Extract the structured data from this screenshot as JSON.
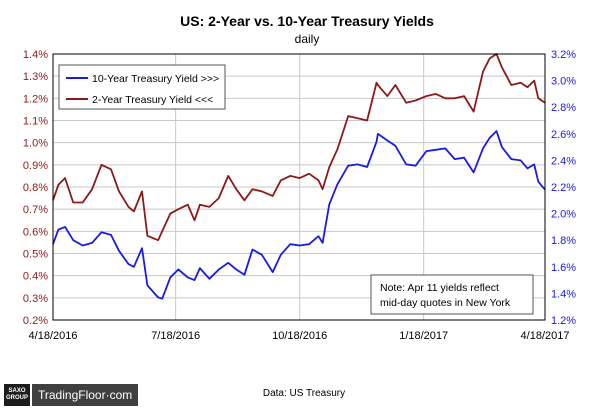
{
  "chart_data": {
    "type": "line",
    "title": "US: 2-Year vs. 10-Year Treasury Yields",
    "subtitle": "daily",
    "x_ticks": [
      "4/18/2016",
      "7/18/2016",
      "10/18/2016",
      "1/18/2017",
      "4/18/2017"
    ],
    "x_range": [
      "2016-04-18",
      "2017-04-18"
    ],
    "y_left": {
      "ticks": [
        "0.2%",
        "0.3%",
        "0.4%",
        "0.5%",
        "0.6%",
        "0.7%",
        "0.8%",
        "0.9%",
        "1.0%",
        "1.1%",
        "1.2%",
        "1.3%",
        "1.4%"
      ],
      "ylim": [
        0.2,
        1.4
      ],
      "color": "#8b1a1a"
    },
    "y_right": {
      "ticks": [
        "1.2%",
        "1.4%",
        "1.6%",
        "1.8%",
        "2.0%",
        "2.2%",
        "2.4%",
        "2.6%",
        "2.8%",
        "3.0%",
        "3.2%"
      ],
      "ylim": [
        1.2,
        3.2
      ],
      "color": "#1a1ae6"
    },
    "legend_placement": "top-left",
    "grid": true,
    "annotation": [
      "Note: Apr 11 yields reflect",
      "mid-day quotes in New York"
    ],
    "series": [
      {
        "name": "10-Year Treasury Yield >>>",
        "axis": "right",
        "color": "#1a1ae6",
        "points": [
          [
            "2016-04-18",
            1.77
          ],
          [
            "2016-04-22",
            1.88
          ],
          [
            "2016-04-27",
            1.9
          ],
          [
            "2016-05-03",
            1.8
          ],
          [
            "2016-05-10",
            1.76
          ],
          [
            "2016-05-17",
            1.78
          ],
          [
            "2016-05-24",
            1.86
          ],
          [
            "2016-05-31",
            1.84
          ],
          [
            "2016-06-06",
            1.72
          ],
          [
            "2016-06-13",
            1.62
          ],
          [
            "2016-06-17",
            1.6
          ],
          [
            "2016-06-23",
            1.74
          ],
          [
            "2016-06-27",
            1.46
          ],
          [
            "2016-07-05",
            1.37
          ],
          [
            "2016-07-08",
            1.36
          ],
          [
            "2016-07-14",
            1.52
          ],
          [
            "2016-07-20",
            1.58
          ],
          [
            "2016-07-27",
            1.52
          ],
          [
            "2016-08-01",
            1.5
          ],
          [
            "2016-08-05",
            1.59
          ],
          [
            "2016-08-12",
            1.51
          ],
          [
            "2016-08-19",
            1.58
          ],
          [
            "2016-08-26",
            1.63
          ],
          [
            "2016-09-01",
            1.58
          ],
          [
            "2016-09-07",
            1.54
          ],
          [
            "2016-09-13",
            1.73
          ],
          [
            "2016-09-20",
            1.69
          ],
          [
            "2016-09-28",
            1.56
          ],
          [
            "2016-10-04",
            1.69
          ],
          [
            "2016-10-11",
            1.77
          ],
          [
            "2016-10-18",
            1.76
          ],
          [
            "2016-10-25",
            1.77
          ],
          [
            "2016-11-01",
            1.83
          ],
          [
            "2016-11-04",
            1.78
          ],
          [
            "2016-11-09",
            2.07
          ],
          [
            "2016-11-15",
            2.22
          ],
          [
            "2016-11-23",
            2.36
          ],
          [
            "2016-11-30",
            2.37
          ],
          [
            "2016-12-07",
            2.35
          ],
          [
            "2016-12-14",
            2.54
          ],
          [
            "2016-12-15",
            2.6
          ],
          [
            "2016-12-22",
            2.55
          ],
          [
            "2016-12-28",
            2.51
          ],
          [
            "2017-01-05",
            2.37
          ],
          [
            "2017-01-12",
            2.36
          ],
          [
            "2017-01-20",
            2.47
          ],
          [
            "2017-01-27",
            2.48
          ],
          [
            "2017-02-03",
            2.49
          ],
          [
            "2017-02-10",
            2.41
          ],
          [
            "2017-02-17",
            2.42
          ],
          [
            "2017-02-24",
            2.31
          ],
          [
            "2017-03-03",
            2.49
          ],
          [
            "2017-03-08",
            2.57
          ],
          [
            "2017-03-13",
            2.62
          ],
          [
            "2017-03-17",
            2.5
          ],
          [
            "2017-03-24",
            2.41
          ],
          [
            "2017-03-31",
            2.4
          ],
          [
            "2017-04-05",
            2.34
          ],
          [
            "2017-04-10",
            2.37
          ],
          [
            "2017-04-13",
            2.24
          ],
          [
            "2017-04-18",
            2.18
          ]
        ]
      },
      {
        "name": "2-Year Treasury Yield <<<",
        "axis": "left",
        "color": "#8b1a1a",
        "points": [
          [
            "2016-04-18",
            0.74
          ],
          [
            "2016-04-22",
            0.81
          ],
          [
            "2016-04-27",
            0.84
          ],
          [
            "2016-05-03",
            0.73
          ],
          [
            "2016-05-10",
            0.73
          ],
          [
            "2016-05-17",
            0.79
          ],
          [
            "2016-05-24",
            0.9
          ],
          [
            "2016-05-31",
            0.88
          ],
          [
            "2016-06-06",
            0.78
          ],
          [
            "2016-06-13",
            0.71
          ],
          [
            "2016-06-17",
            0.69
          ],
          [
            "2016-06-23",
            0.78
          ],
          [
            "2016-06-27",
            0.58
          ],
          [
            "2016-07-05",
            0.56
          ],
          [
            "2016-07-08",
            0.6
          ],
          [
            "2016-07-14",
            0.68
          ],
          [
            "2016-07-20",
            0.7
          ],
          [
            "2016-07-27",
            0.72
          ],
          [
            "2016-08-01",
            0.65
          ],
          [
            "2016-08-05",
            0.72
          ],
          [
            "2016-08-12",
            0.71
          ],
          [
            "2016-08-19",
            0.75
          ],
          [
            "2016-08-26",
            0.85
          ],
          [
            "2016-09-01",
            0.79
          ],
          [
            "2016-09-07",
            0.74
          ],
          [
            "2016-09-13",
            0.79
          ],
          [
            "2016-09-20",
            0.78
          ],
          [
            "2016-09-28",
            0.76
          ],
          [
            "2016-10-04",
            0.83
          ],
          [
            "2016-10-11",
            0.85
          ],
          [
            "2016-10-18",
            0.84
          ],
          [
            "2016-10-25",
            0.86
          ],
          [
            "2016-11-01",
            0.83
          ],
          [
            "2016-11-04",
            0.79
          ],
          [
            "2016-11-09",
            0.89
          ],
          [
            "2016-11-15",
            0.97
          ],
          [
            "2016-11-23",
            1.12
          ],
          [
            "2016-11-30",
            1.11
          ],
          [
            "2016-12-07",
            1.1
          ],
          [
            "2016-12-14",
            1.27
          ],
          [
            "2016-12-15",
            1.26
          ],
          [
            "2016-12-22",
            1.21
          ],
          [
            "2016-12-28",
            1.26
          ],
          [
            "2017-01-05",
            1.18
          ],
          [
            "2017-01-12",
            1.19
          ],
          [
            "2017-01-20",
            1.21
          ],
          [
            "2017-01-27",
            1.22
          ],
          [
            "2017-02-03",
            1.2
          ],
          [
            "2017-02-10",
            1.2
          ],
          [
            "2017-02-17",
            1.21
          ],
          [
            "2017-02-24",
            1.14
          ],
          [
            "2017-03-03",
            1.32
          ],
          [
            "2017-03-08",
            1.38
          ],
          [
            "2017-03-13",
            1.4
          ],
          [
            "2017-03-17",
            1.34
          ],
          [
            "2017-03-24",
            1.26
          ],
          [
            "2017-03-31",
            1.27
          ],
          [
            "2017-04-05",
            1.25
          ],
          [
            "2017-04-10",
            1.28
          ],
          [
            "2017-04-13",
            1.2
          ],
          [
            "2017-04-18",
            1.18
          ]
        ]
      }
    ]
  },
  "footer": {
    "source": "Data: US Treasury",
    "brand_logo_top": "SAXO",
    "brand_logo_bottom": "GROUP",
    "brand_name": "TradingFloor·com"
  }
}
